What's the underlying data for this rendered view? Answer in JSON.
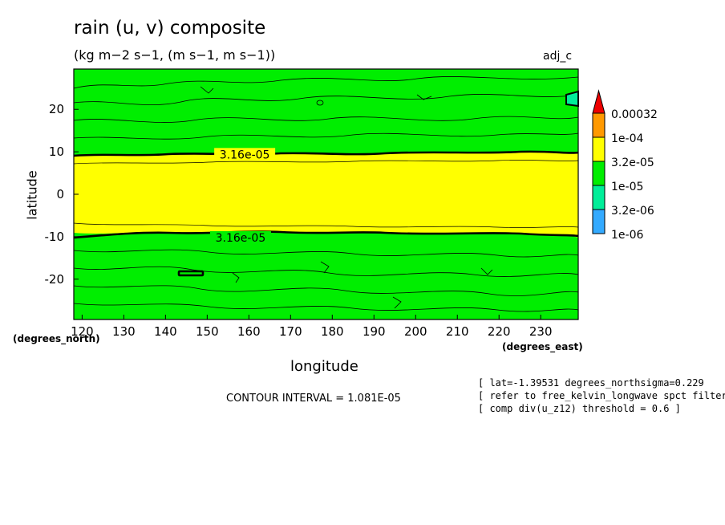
{
  "title": "rain (u, v) composite",
  "subtitle": "(kg m−2 s−1, (m s−1, m s−1))",
  "tag": "adj_c",
  "x_unit": "(degrees_east)",
  "y_unit": "(degrees_north)",
  "contour_interval": "CONTOUR INTERVAL = 1.081E-05",
  "notes": [
    "[ lat=-1.39531 degrees_northsigma=0.229",
    "[ refer to free_kelvin_longwave spct filterin",
    "[ comp div(u_z12) threshold = 0.6 ]"
  ],
  "colors": {
    "band_high": "#ffff00",
    "band_mid": "#00ee00",
    "band_low": "#00ee99",
    "band_lower": "#33aaff",
    "band_top": "#ff9900",
    "band_over": "#ee0000"
  },
  "chart_data": {
    "type": "heatmap",
    "title": "rain (u, v) composite",
    "xlabel": "longitude",
    "ylabel": "latitude",
    "xlim": [
      118,
      239
    ],
    "ylim": [
      -29.5,
      29.5
    ],
    "xticks": [
      120,
      130,
      140,
      150,
      160,
      170,
      180,
      190,
      200,
      210,
      220,
      230
    ],
    "yticks": [
      -20,
      -10,
      0,
      10,
      20
    ],
    "contour_labels": [
      {
        "text": "3.16e-05",
        "x": 159,
        "y": 9.2
      },
      {
        "text": "3.16e-05",
        "x": 158,
        "y": -10.4
      }
    ],
    "equatorial_band": {
      "value": "3.2e-05 to 1e-04",
      "lat_north": 9.5,
      "lat_south": -9.5
    },
    "colorbar": {
      "labels": [
        "0.00032",
        "1e-04",
        "3.2e-05",
        "1e-05",
        "3.2e-06",
        "1e-06"
      ],
      "level_colors": [
        "#ff9900",
        "#ffff00",
        "#00ee00",
        "#00ee99",
        "#33aaff"
      ],
      "overflow_color": "#ee0000"
    }
  }
}
